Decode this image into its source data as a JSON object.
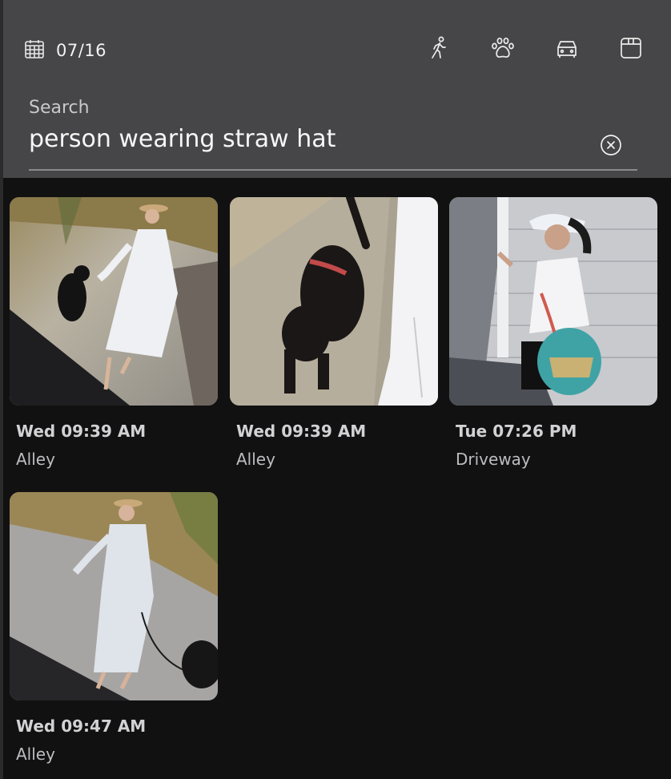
{
  "header": {
    "date": "07/16",
    "date_icon": "calendar-icon",
    "filters": [
      {
        "name": "person",
        "icon": "person-walking-icon"
      },
      {
        "name": "animal",
        "icon": "paw-icon"
      },
      {
        "name": "vehicle",
        "icon": "car-icon"
      },
      {
        "name": "package",
        "icon": "package-icon"
      }
    ]
  },
  "search": {
    "label": "Search",
    "value": "person wearing straw hat",
    "clear_icon": "clear-circle-icon"
  },
  "results": [
    {
      "time": "Wed 09:39 AM",
      "location": "Alley"
    },
    {
      "time": "Wed 09:39 AM",
      "location": "Alley"
    },
    {
      "time": "Tue 07:26 PM",
      "location": "Driveway"
    },
    {
      "time": "Wed 09:47 AM",
      "location": "Alley"
    }
  ],
  "colors": {
    "header_bg": "#464648",
    "page_bg": "#111112",
    "text_primary": "#f2f2f2",
    "text_secondary": "#bdbdc0"
  }
}
